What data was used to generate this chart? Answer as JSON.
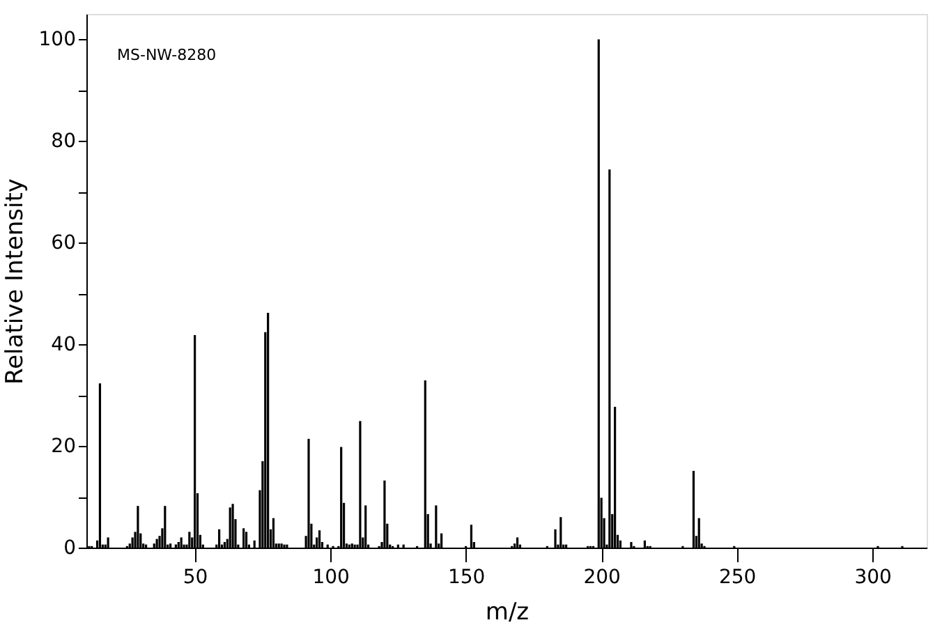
{
  "chart_data": {
    "type": "bar",
    "xlabel": "m/z",
    "ylabel": "Relative Intensity",
    "annotations": [
      "MS-NW-8280"
    ],
    "x": [
      11,
      12,
      14,
      15,
      16,
      17,
      18,
      25,
      26,
      27,
      28,
      29,
      30,
      31,
      32,
      35,
      36,
      37,
      38,
      39,
      40,
      41,
      43,
      44,
      45,
      46,
      47,
      48,
      49,
      50,
      51,
      52,
      53,
      58,
      59,
      60,
      61,
      62,
      63,
      64,
      65,
      66,
      68,
      69,
      70,
      72,
      74,
      75,
      76,
      77,
      78,
      79,
      80,
      81,
      82,
      83,
      84,
      91,
      92,
      93,
      94,
      95,
      96,
      97,
      99,
      101,
      103,
      104,
      105,
      106,
      107,
      108,
      109,
      110,
      111,
      112,
      113,
      114,
      118,
      119,
      120,
      121,
      122,
      123,
      125,
      127,
      132,
      135,
      136,
      137,
      139,
      140,
      141,
      150,
      152,
      153,
      167,
      168,
      169,
      170,
      180,
      183,
      184,
      185,
      186,
      187,
      195,
      196,
      197,
      199,
      200,
      201,
      202,
      203,
      204,
      205,
      206,
      207,
      211,
      212,
      216,
      217,
      218,
      230,
      234,
      235,
      236,
      237,
      238,
      249,
      302,
      311
    ],
    "values": [
      0.3,
      0.3,
      1.4,
      32.3,
      0.6,
      0.6,
      2.0,
      0.3,
      0.8,
      2.0,
      3.1,
      8.2,
      2.8,
      0.8,
      0.6,
      0.8,
      1.7,
      2.3,
      3.8,
      8.2,
      0.6,
      0.8,
      0.6,
      1.1,
      2.0,
      0.6,
      0.6,
      3.1,
      2.0,
      41.8,
      10.7,
      2.5,
      0.6,
      0.6,
      3.6,
      0.6,
      1.1,
      1.7,
      7.9,
      8.6,
      5.6,
      0.6,
      3.8,
      3.1,
      0.6,
      1.4,
      11.3,
      17.0,
      42.4,
      46.2,
      3.6,
      5.8,
      0.8,
      0.8,
      0.8,
      0.6,
      0.6,
      2.3,
      21.4,
      4.7,
      0.6,
      2.0,
      3.4,
      1.1,
      0.6,
      0.3,
      0.3,
      19.8,
      8.8,
      0.8,
      0.6,
      0.8,
      0.6,
      0.6,
      24.9,
      2.0,
      8.3,
      0.6,
      0.3,
      1.1,
      13.2,
      4.7,
      0.6,
      0.3,
      0.6,
      0.6,
      0.3,
      32.9,
      6.6,
      0.8,
      8.3,
      0.8,
      2.8,
      0.3,
      4.5,
      1.1,
      0.3,
      0.8,
      2.0,
      0.6,
      0.3,
      3.6,
      0.6,
      6.0,
      0.6,
      0.6,
      0.3,
      0.3,
      0.3,
      100,
      9.8,
      5.8,
      0.6,
      74.4,
      6.6,
      27.7,
      2.5,
      1.4,
      1.1,
      0.3,
      1.4,
      0.3,
      0.3,
      0.3,
      15.1,
      2.3,
      5.8,
      0.8,
      0.3,
      0.3,
      0.3,
      0.3
    ],
    "color": "#000000",
    "xlim": [
      10,
      320
    ],
    "xticks": [
      50,
      100,
      150,
      200,
      250,
      300
    ],
    "ylim": [
      0,
      105
    ],
    "yticks": [
      0,
      {
        "value": 10,
        "label": null
      },
      20,
      {
        "value": 30,
        "label": null
      },
      40,
      {
        "value": 50,
        "label": null
      },
      60,
      {
        "value": 70,
        "label": null
      },
      80,
      {
        "value": 90,
        "label": null
      },
      100
    ],
    "grid": false
  }
}
